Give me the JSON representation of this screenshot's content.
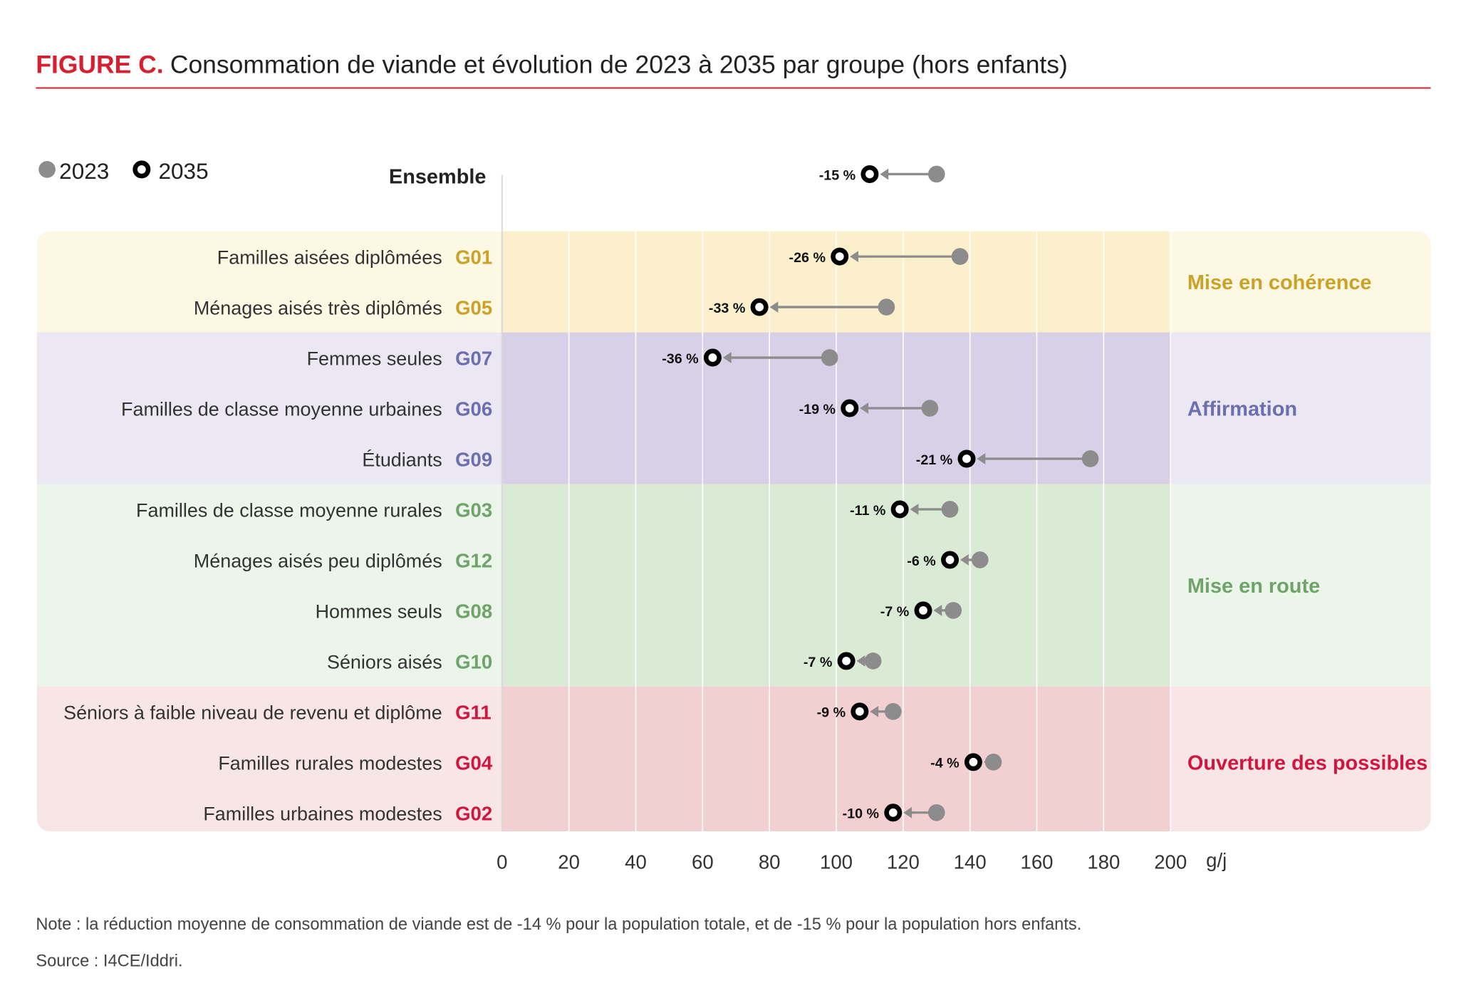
{
  "title": {
    "prefix": "FIGURE C.",
    "text": "Consommation de viande et évolution de 2023 à 2035 par groupe (hors enfants)"
  },
  "colors": {
    "title_red": "#d6202f",
    "dot_2023": "#8c8c8c",
    "dot_2035": "#000000"
  },
  "legend": [
    {
      "label": "2023",
      "marker": "grey-filled-circle"
    },
    {
      "label": "2035",
      "marker": "black-ring-circle"
    }
  ],
  "chart_data": {
    "type": "dumbbell",
    "xlabel": "g/j",
    "xlim": [
      0,
      200
    ],
    "xticks": [
      "0",
      "20",
      "40",
      "60",
      "80",
      "100",
      "120",
      "140",
      "160",
      "180",
      "200"
    ],
    "grid": true,
    "legend_position": "top-left",
    "overall": {
      "label": "Ensemble",
      "v2023": 130,
      "v2035": 110,
      "change": "-15 %"
    },
    "rows": [
      {
        "label": "Familles aisées diplômées",
        "code": "G01",
        "group": 0,
        "v2023": 137,
        "v2035": 101,
        "change": "-26 %"
      },
      {
        "label": "Ménages aisés très diplômés",
        "code": "G05",
        "group": 0,
        "v2023": 115,
        "v2035": 77,
        "change": "-33 %"
      },
      {
        "label": "Femmes seules",
        "code": "G07",
        "group": 1,
        "v2023": 98,
        "v2035": 63,
        "change": "-36 %"
      },
      {
        "label": "Familles de classe moyenne urbaines",
        "code": "G06",
        "group": 1,
        "v2023": 128,
        "v2035": 104,
        "change": "-19 %"
      },
      {
        "label": "Étudiants",
        "code": "G09",
        "group": 1,
        "v2023": 176,
        "v2035": 139,
        "change": "-21 %"
      },
      {
        "label": "Familles de classe moyenne rurales",
        "code": "G03",
        "group": 2,
        "v2023": 134,
        "v2035": 119,
        "change": "-11 %"
      },
      {
        "label": "Ménages aisés peu diplômés",
        "code": "G12",
        "group": 2,
        "v2023": 143,
        "v2035": 134,
        "change": "-6 %"
      },
      {
        "label": "Hommes seuls",
        "code": "G08",
        "group": 2,
        "v2023": 135,
        "v2035": 126,
        "change": "-7 %"
      },
      {
        "label": "Séniors aisés",
        "code": "G10",
        "group": 2,
        "v2023": 111,
        "v2035": 103,
        "change": "-7 %"
      },
      {
        "label": "Séniors à faible niveau de revenu et diplôme",
        "code": "G11",
        "group": 3,
        "v2023": 117,
        "v2035": 107,
        "change": "-9 %"
      },
      {
        "label": "Familles rurales modestes",
        "code": "G04",
        "group": 3,
        "v2023": 147,
        "v2035": 141,
        "change": "-4 %"
      },
      {
        "label": "Familles urbaines modestes",
        "code": "G02",
        "group": 3,
        "v2023": 130,
        "v2035": 117,
        "change": "-10 %"
      }
    ],
    "groups": [
      {
        "name": "Mise en cohérence",
        "color": "#c9a227",
        "bg_light": "#fdf8e4",
        "bg_dark": "#fcefcc"
      },
      {
        "name": "Affirmation",
        "color": "#6b6fae",
        "bg_light": "#ebe7f3",
        "bg_dark": "#d8d0e7"
      },
      {
        "name": "Mise en route",
        "color": "#6fa36a",
        "bg_light": "#ebf5ea",
        "bg_dark": "#d9ead5"
      },
      {
        "name": "Ouverture des possibles",
        "color": "#d0163f",
        "bg_light": "#f8e6e6",
        "bg_dark": "#f2cfd0"
      }
    ]
  },
  "note": "Note : la réduction moyenne de consommation de viande est de -14 % pour la population totale, et de -15 % pour la population hors enfants.",
  "source": "Source : I4CE/Iddri."
}
